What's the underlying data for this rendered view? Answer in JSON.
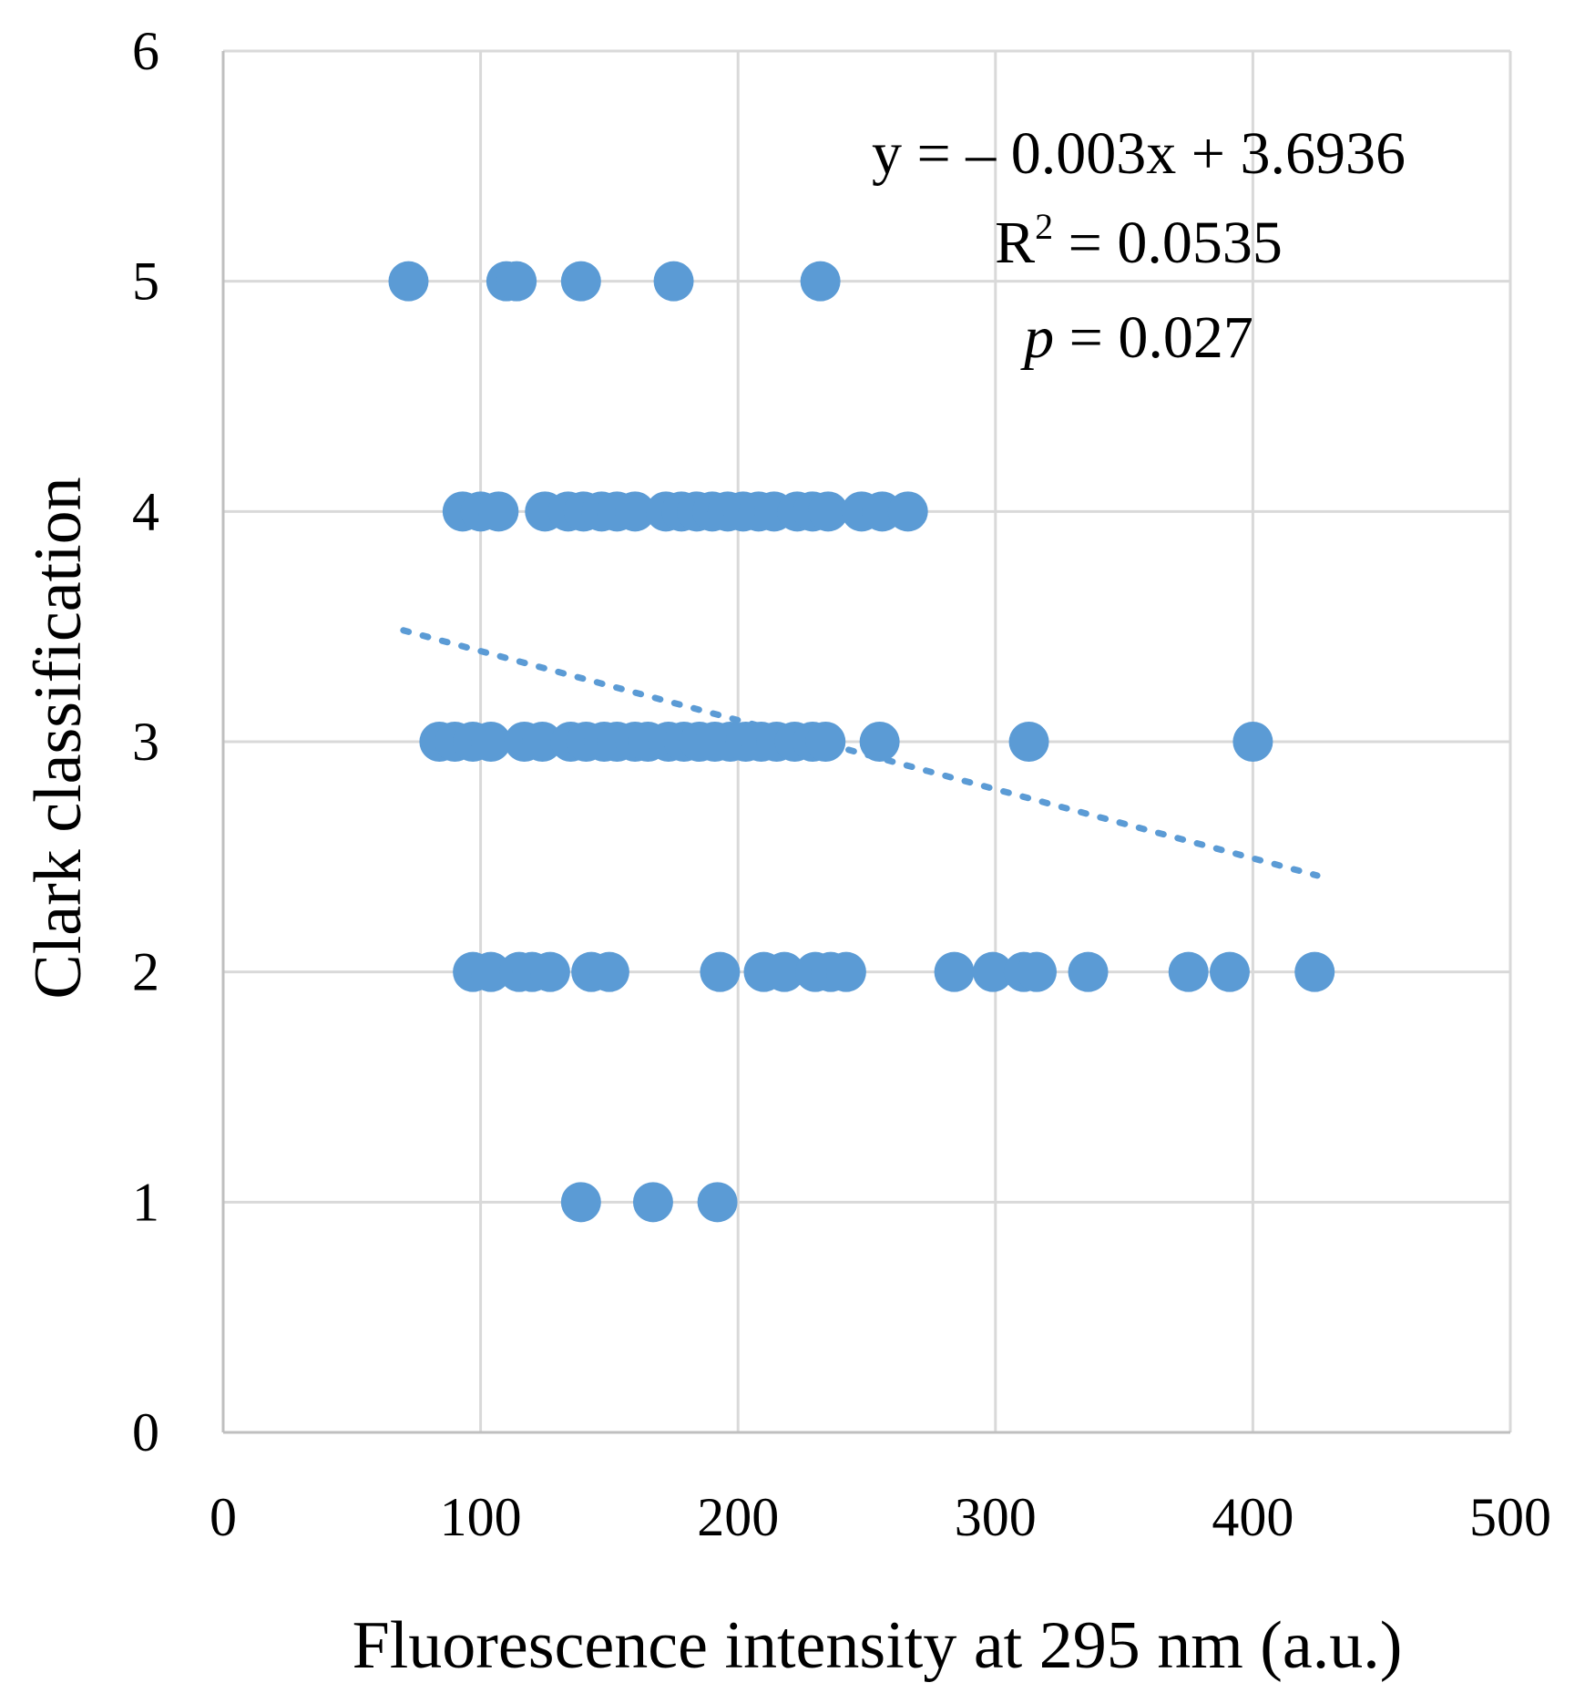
{
  "chart_data": {
    "type": "scatter",
    "title": "",
    "xlabel": "Fluorescence intensity at 295 nm (a.u.)",
    "ylabel": "Clark classification",
    "xlim": [
      0,
      500
    ],
    "ylim": [
      0,
      6
    ],
    "xticks": [
      0,
      100,
      200,
      300,
      400,
      500
    ],
    "yticks": [
      0,
      1,
      2,
      3,
      4,
      5,
      6
    ],
    "grid": true,
    "marker_color": "#5b9bd5",
    "trendline_color": "#5b9bd5",
    "points": [
      [
        72,
        5
      ],
      [
        110,
        5
      ],
      [
        114,
        5
      ],
      [
        139,
        5
      ],
      [
        175,
        5
      ],
      [
        232,
        5
      ],
      [
        93,
        4
      ],
      [
        100,
        4
      ],
      [
        107,
        4
      ],
      [
        125,
        4
      ],
      [
        134,
        4
      ],
      [
        140,
        4
      ],
      [
        147,
        4
      ],
      [
        153,
        4
      ],
      [
        160,
        4
      ],
      [
        172,
        4
      ],
      [
        178,
        4
      ],
      [
        184,
        4
      ],
      [
        190,
        4
      ],
      [
        196,
        4
      ],
      [
        202,
        4
      ],
      [
        208,
        4
      ],
      [
        214,
        4
      ],
      [
        223,
        4
      ],
      [
        229,
        4
      ],
      [
        235,
        4
      ],
      [
        248,
        4
      ],
      [
        256,
        4
      ],
      [
        266,
        4
      ],
      [
        84,
        3
      ],
      [
        90,
        3
      ],
      [
        97,
        3
      ],
      [
        104,
        3
      ],
      [
        117,
        3
      ],
      [
        124,
        3
      ],
      [
        135,
        3
      ],
      [
        141,
        3
      ],
      [
        148,
        3
      ],
      [
        153,
        3
      ],
      [
        160,
        3
      ],
      [
        165,
        3
      ],
      [
        173,
        3
      ],
      [
        179,
        3
      ],
      [
        185,
        3
      ],
      [
        191,
        3
      ],
      [
        197,
        3
      ],
      [
        203,
        3
      ],
      [
        209,
        3
      ],
      [
        215,
        3
      ],
      [
        222,
        3
      ],
      [
        229,
        3
      ],
      [
        234,
        3
      ],
      [
        255,
        3
      ],
      [
        313,
        3
      ],
      [
        400,
        3
      ],
      [
        97,
        2
      ],
      [
        104,
        2
      ],
      [
        115,
        2
      ],
      [
        120,
        2
      ],
      [
        127,
        2
      ],
      [
        143,
        2
      ],
      [
        150,
        2
      ],
      [
        193,
        2
      ],
      [
        210,
        2
      ],
      [
        218,
        2
      ],
      [
        230,
        2
      ],
      [
        236,
        2
      ],
      [
        242,
        2
      ],
      [
        284,
        2
      ],
      [
        299,
        2
      ],
      [
        311,
        2
      ],
      [
        316,
        2
      ],
      [
        336,
        2
      ],
      [
        375,
        2
      ],
      [
        391,
        2
      ],
      [
        424,
        2
      ],
      [
        139,
        1
      ],
      [
        167,
        1
      ],
      [
        192,
        1
      ]
    ],
    "trendline": {
      "slope": -0.003,
      "intercept": 3.6936,
      "x_start": 70,
      "x_end": 425
    },
    "annotation": {
      "equation": "y = – 0.003x + 3.6936",
      "r2_prefix": "R",
      "r2_sup": "2",
      "r2_value": " = 0.0535",
      "p_symbol": "p",
      "p_value": " = 0.027"
    }
  }
}
